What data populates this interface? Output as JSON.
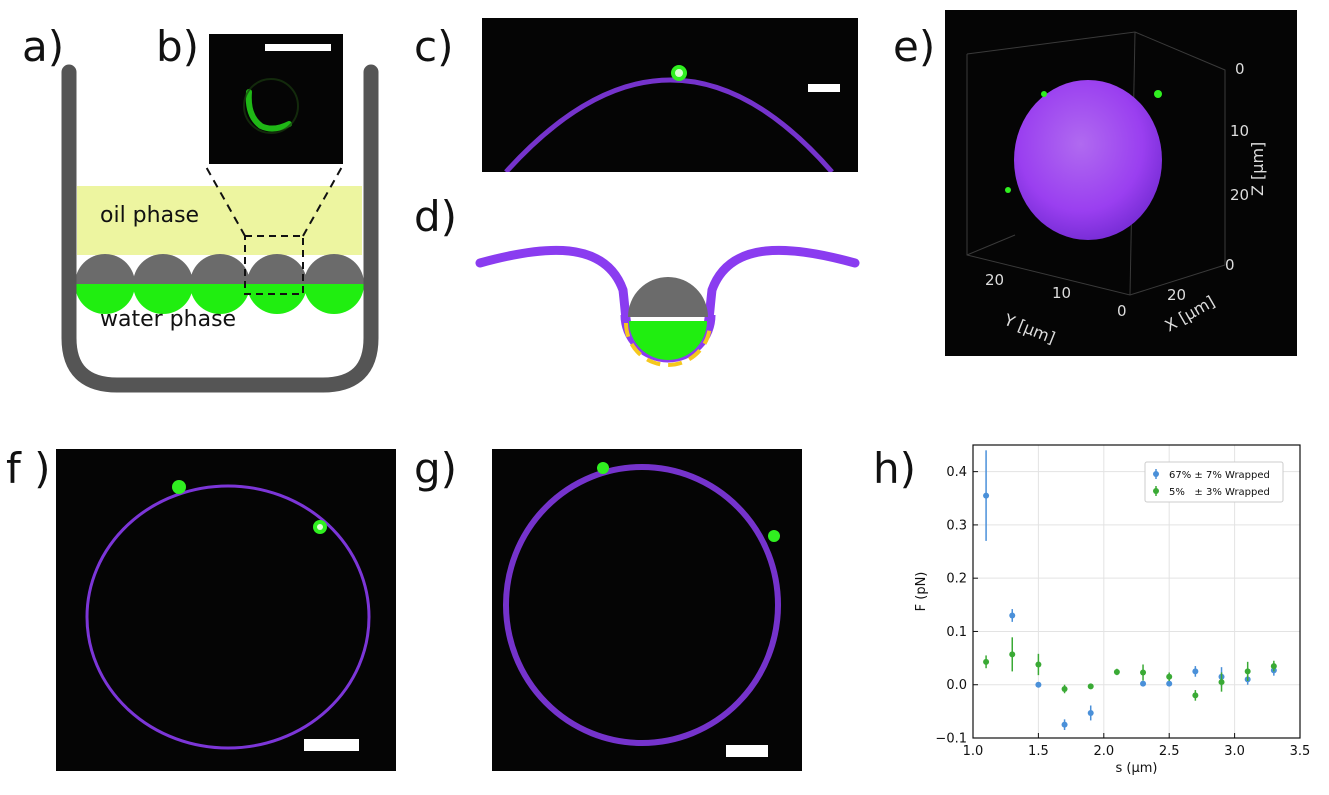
{
  "panel_labels": {
    "a": "a)",
    "b": "b)",
    "c": "c)",
    "d": "d)",
    "e": "e)",
    "f": "f )",
    "g": "g)",
    "h": "h)"
  },
  "schematic_a": {
    "oil_phase": "oil phase",
    "water_phase": "water phase"
  },
  "volume_e": {
    "z_label": "Z [μm]",
    "z_ticks": [
      "0",
      "10",
      "20"
    ],
    "y_label": "Y [μm]",
    "y_ticks": [
      "20",
      "10",
      "0"
    ],
    "x_label": "X [μm]",
    "x_ticks": [
      "0",
      "20"
    ]
  },
  "colors": {
    "membrane": "#8a3cf0",
    "particle_green": "#20ee10",
    "particle_grey": "#6b6b6b",
    "oil": "#edf5a0",
    "coating": "#f5c81e",
    "series_blue": "#4a90d9",
    "series_green": "#3aaa35"
  },
  "chart_data": {
    "type": "scatter",
    "xlabel": "s (μm)",
    "ylabel": "F (pN)",
    "xlim": [
      1.0,
      3.5
    ],
    "ylim": [
      -0.1,
      0.45
    ],
    "x_ticks": [
      "1.0",
      "1.5",
      "2.0",
      "2.5",
      "3.0",
      "3.5"
    ],
    "y_ticks": [
      "−0.1",
      "0.0",
      "0.1",
      "0.2",
      "0.3",
      "0.4"
    ],
    "grid": true,
    "legend": "top-right",
    "series": [
      {
        "name": "67% ± 7% Wrapped",
        "color": "#4a90d9",
        "x": [
          1.1,
          1.3,
          1.5,
          1.7,
          1.9,
          2.3,
          2.5,
          2.7,
          2.9,
          3.1,
          3.3
        ],
        "y": [
          0.355,
          0.13,
          0.0,
          -0.075,
          -0.053,
          0.002,
          0.002,
          0.025,
          0.015,
          0.01,
          0.027
        ],
        "err": [
          0.085,
          0.012,
          0.004,
          0.01,
          0.014,
          0.004,
          0.004,
          0.01,
          0.018,
          0.01,
          0.01
        ]
      },
      {
        "name": "5%   ± 3% Wrapped",
        "color": "#3aaa35",
        "x": [
          1.1,
          1.3,
          1.5,
          1.7,
          1.9,
          2.1,
          2.3,
          2.5,
          2.7,
          2.9,
          3.1,
          3.3
        ],
        "y": [
          0.043,
          0.057,
          0.038,
          -0.008,
          -0.003,
          0.024,
          0.023,
          0.015,
          -0.02,
          0.005,
          0.025,
          0.035
        ],
        "err": [
          0.012,
          0.032,
          0.02,
          0.008,
          0.004,
          0.006,
          0.015,
          0.008,
          0.01,
          0.018,
          0.018,
          0.01
        ]
      }
    ]
  }
}
